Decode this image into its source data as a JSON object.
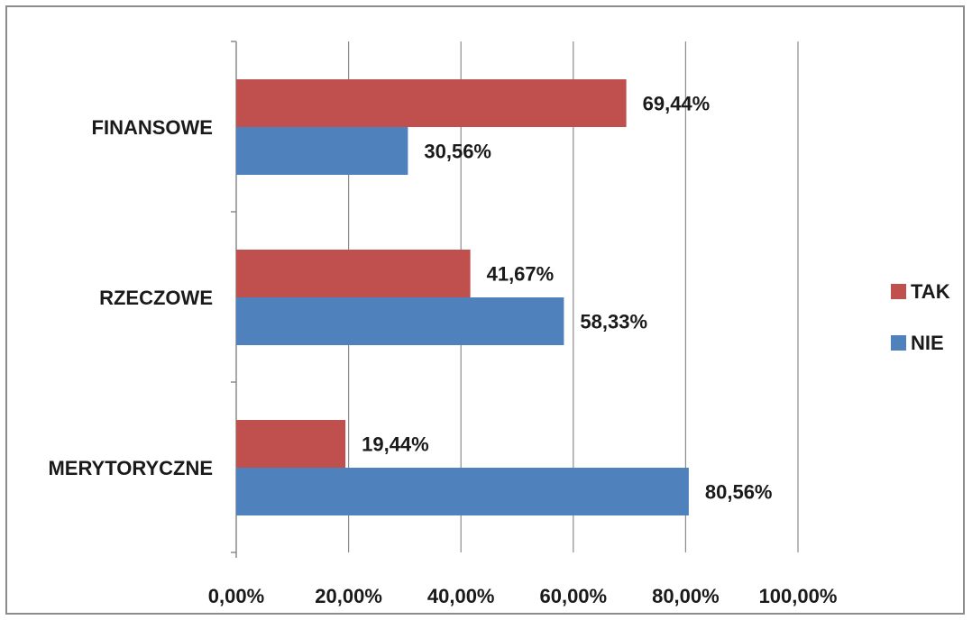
{
  "chart_data": {
    "type": "bar",
    "orientation": "horizontal",
    "categories": [
      "FINANSOWE",
      "RZECZOWE",
      "MERYTORYCZNE"
    ],
    "series": [
      {
        "name": "TAK",
        "color": "#c0504d",
        "values": [
          69.44,
          41.67,
          19.44
        ],
        "labels": [
          "69,44%",
          "41,67%",
          "19,44%"
        ]
      },
      {
        "name": "NIE",
        "color": "#4f81bd",
        "values": [
          30.56,
          58.33,
          80.56
        ],
        "labels": [
          "30,56%",
          "58,33%",
          "80,56%"
        ]
      }
    ],
    "xlim": [
      0,
      100
    ],
    "x_ticks": [
      "0,00%",
      "20,00%",
      "40,00%",
      "60,00%",
      "80,00%",
      "100,00%"
    ],
    "grid": "vertical major",
    "legend_position": "right"
  }
}
